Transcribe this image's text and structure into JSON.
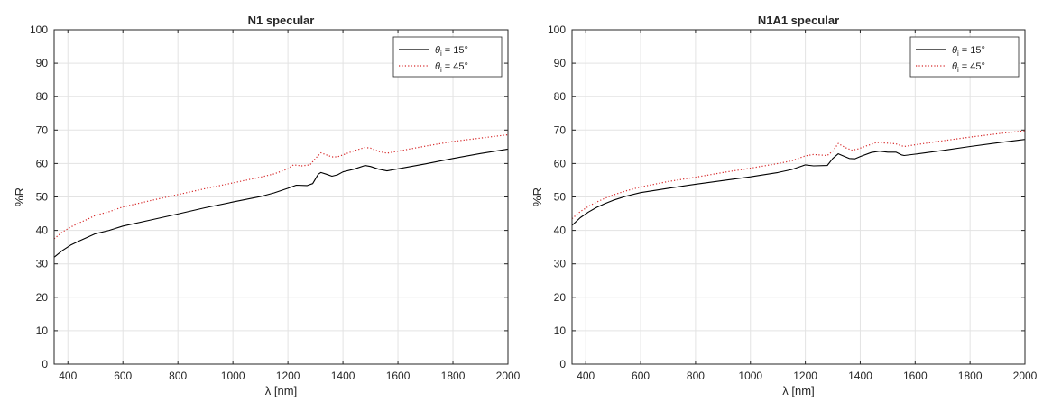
{
  "chart_data": [
    {
      "type": "line",
      "title": "N1 specular",
      "xlabel": "λ [nm]",
      "ylabel": "%R",
      "xlim": [
        350,
        2000
      ],
      "ylim": [
        0,
        100
      ],
      "xticks": [
        400,
        600,
        800,
        1000,
        1200,
        1400,
        1600,
        1800,
        2000
      ],
      "yticks": [
        0,
        10,
        20,
        30,
        40,
        50,
        60,
        70,
        80,
        90,
        100
      ],
      "grid": true,
      "legend_position": "top-right",
      "series": [
        {
          "name_symbol": "θ",
          "name_sub": "i",
          "name_rest": " = 15°",
          "color": "#000000",
          "style": "solid",
          "x": [
            350,
            380,
            410,
            440,
            470,
            500,
            550,
            600,
            700,
            800,
            900,
            1000,
            1100,
            1150,
            1200,
            1230,
            1270,
            1290,
            1310,
            1320,
            1340,
            1360,
            1380,
            1400,
            1440,
            1480,
            1500,
            1530,
            1560,
            1600,
            1700,
            1800,
            1900,
            2000
          ],
          "y": [
            32,
            34,
            35.6,
            36.8,
            37.9,
            39,
            40,
            41.3,
            43.1,
            44.9,
            46.8,
            48.5,
            50.1,
            51.2,
            52.6,
            53.5,
            53.4,
            54,
            56.8,
            57.3,
            56.8,
            56.2,
            56.6,
            57.5,
            58.3,
            59.4,
            59.1,
            58.3,
            57.8,
            58.4,
            59.9,
            61.5,
            63,
            64.3
          ]
        },
        {
          "name_symbol": "θ",
          "name_sub": "i",
          "name_rest": " = 45°",
          "color": "#d62728",
          "style": "dotted",
          "x": [
            350,
            380,
            410,
            440,
            470,
            500,
            550,
            600,
            700,
            800,
            900,
            1000,
            1100,
            1150,
            1200,
            1220,
            1250,
            1280,
            1300,
            1320,
            1340,
            1360,
            1380,
            1400,
            1440,
            1480,
            1500,
            1530,
            1560,
            1600,
            1700,
            1800,
            1900,
            2000
          ],
          "y": [
            37.5,
            39.5,
            41,
            42.2,
            43.3,
            44.5,
            45.6,
            47,
            48.9,
            50.7,
            52.5,
            54.2,
            55.9,
            56.9,
            58.4,
            59.6,
            59.3,
            59.6,
            61.5,
            63.2,
            62.6,
            62,
            62,
            62.6,
            63.8,
            64.8,
            64.6,
            63.6,
            63.1,
            63.7,
            65.2,
            66.6,
            67.6,
            68.6
          ]
        }
      ]
    },
    {
      "type": "line",
      "title": "N1A1 specular",
      "xlabel": "λ [nm]",
      "ylabel": "%R",
      "xlim": [
        350,
        2000
      ],
      "ylim": [
        0,
        100
      ],
      "xticks": [
        400,
        600,
        800,
        1000,
        1200,
        1400,
        1600,
        1800,
        2000
      ],
      "yticks": [
        0,
        10,
        20,
        30,
        40,
        50,
        60,
        70,
        80,
        90,
        100
      ],
      "grid": true,
      "legend_position": "top-right",
      "series": [
        {
          "name_symbol": "θ",
          "name_sub": "i",
          "name_rest": " = 15°",
          "color": "#000000",
          "style": "solid",
          "x": [
            350,
            380,
            410,
            440,
            470,
            500,
            550,
            600,
            700,
            800,
            900,
            1000,
            1100,
            1150,
            1200,
            1230,
            1280,
            1300,
            1320,
            1340,
            1360,
            1380,
            1400,
            1440,
            1470,
            1500,
            1530,
            1550,
            1560,
            1600,
            1700,
            1800,
            1900,
            2000
          ],
          "y": [
            41.5,
            43.8,
            45.5,
            46.9,
            48,
            49,
            50.3,
            51.3,
            52.6,
            53.8,
            54.9,
            56,
            57.3,
            58.2,
            59.6,
            59.3,
            59.4,
            61.5,
            62.9,
            62.2,
            61.5,
            61.4,
            62.1,
            63.3,
            63.7,
            63.4,
            63.4,
            62.6,
            62.4,
            62.8,
            63.9,
            65.1,
            66.2,
            67.2
          ]
        },
        {
          "name_symbol": "θ",
          "name_sub": "i",
          "name_rest": " = 45°",
          "color": "#d62728",
          "style": "dotted",
          "x": [
            350,
            380,
            410,
            440,
            470,
            500,
            550,
            600,
            700,
            800,
            900,
            1000,
            1100,
            1150,
            1200,
            1230,
            1280,
            1300,
            1320,
            1330,
            1350,
            1370,
            1390,
            1420,
            1460,
            1500,
            1530,
            1550,
            1560,
            1600,
            1700,
            1800,
            1900,
            2000
          ],
          "y": [
            43.5,
            45.6,
            47.2,
            48.5,
            49.6,
            50.6,
            51.9,
            53,
            54.6,
            55.9,
            57.3,
            58.6,
            60,
            60.8,
            62.3,
            62.7,
            62.4,
            63.7,
            66,
            65.5,
            64.6,
            64,
            64.3,
            65.2,
            66.3,
            66.1,
            65.9,
            65.3,
            65.1,
            65.6,
            66.8,
            67.9,
            68.9,
            69.8
          ]
        }
      ]
    }
  ]
}
